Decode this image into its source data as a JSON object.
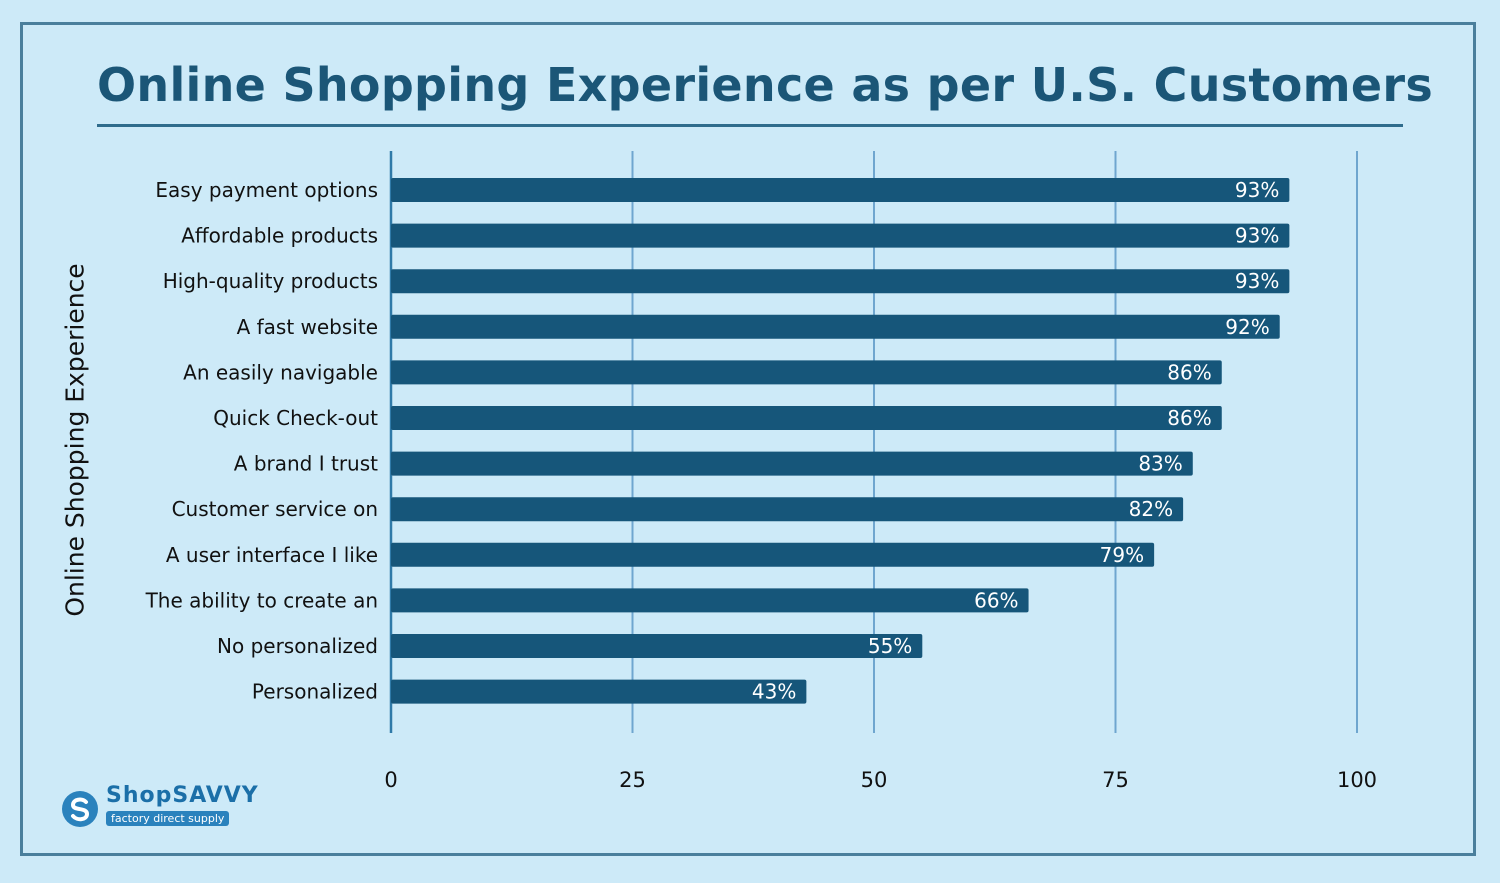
{
  "chart_data": {
    "type": "bar",
    "orientation": "horizontal",
    "title": "Online Shopping Experience as per U.S. Customers",
    "xlabel": "",
    "ylabel": "Online Shopping Experience",
    "xlim": [
      0,
      100
    ],
    "xticks": [
      0,
      25,
      50,
      75,
      100
    ],
    "grid": true,
    "categories": [
      "Easy payment options",
      "Affordable products",
      "High-quality products",
      "A fast website",
      "An easily navigable",
      "Quick Check-out",
      "A brand I trust",
      "Customer service on",
      "A user interface I like",
      "The ability to create an",
      "No personalized",
      "Personalized"
    ],
    "values": [
      93,
      93,
      93,
      92,
      86,
      86,
      83,
      82,
      79,
      66,
      55,
      43
    ],
    "value_labels": [
      "93%",
      "93%",
      "93%",
      "92%",
      "86%",
      "86%",
      "83%",
      "82%",
      "79%",
      "66%",
      "55%",
      "43%"
    ]
  },
  "colors": {
    "background": "#cdeaf8",
    "bar": "#16567a",
    "grid": "#6fa6cf",
    "title": "#1b5677"
  },
  "logo": {
    "name": "ShopSAVVY",
    "tagline": "factory direct supply"
  }
}
